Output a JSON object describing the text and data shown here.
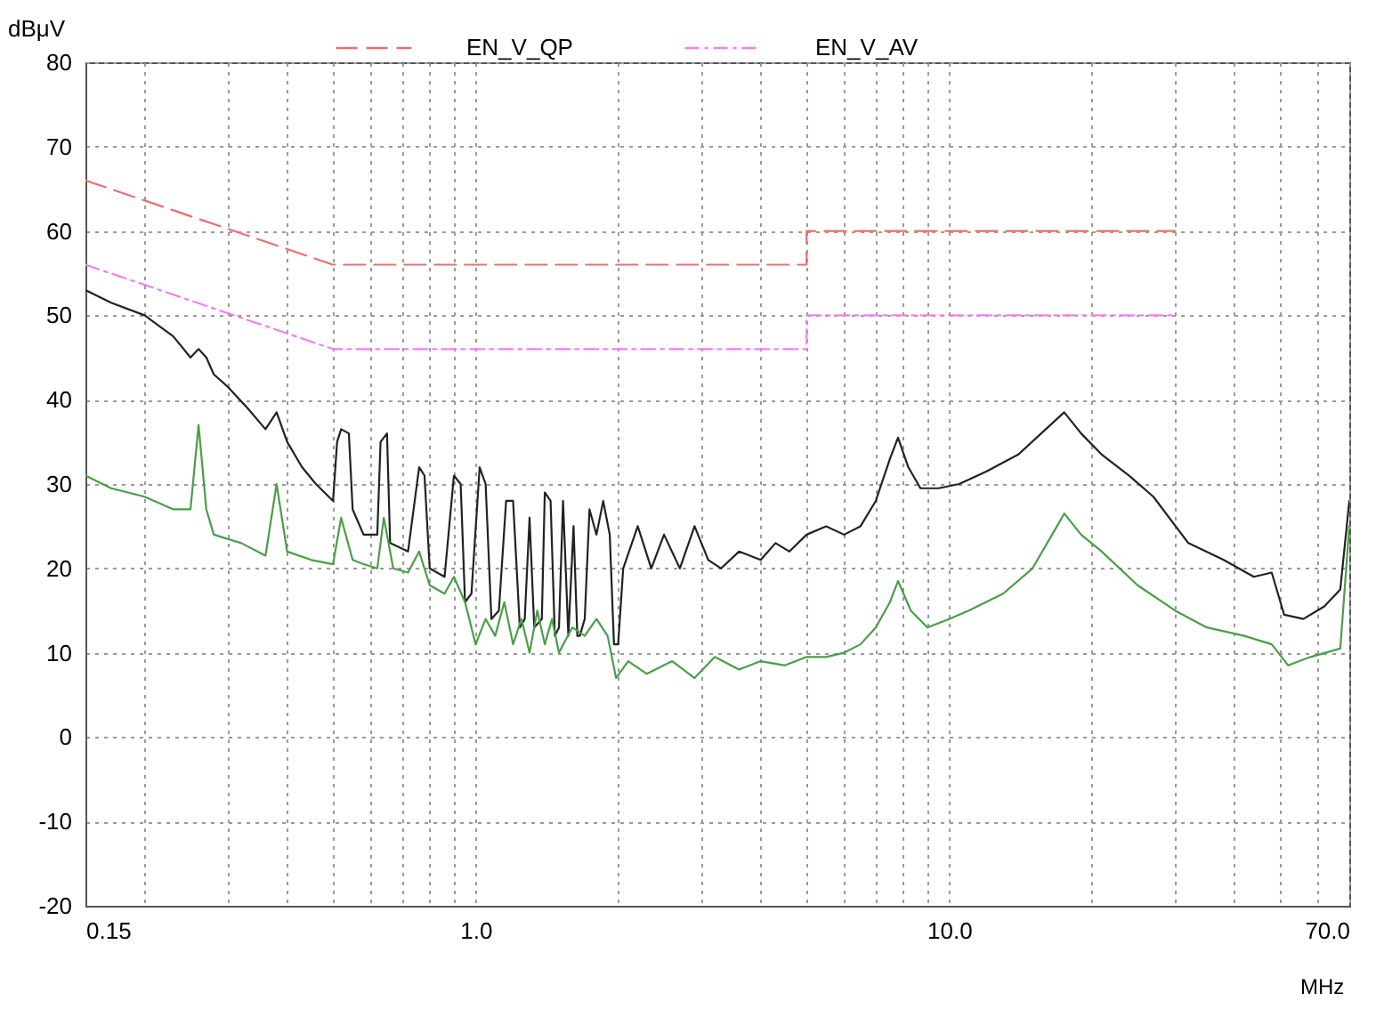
{
  "chart_data": {
    "type": "line",
    "xlabel": "MHz",
    "ylabel": "dBμV",
    "log": "x",
    "grid": true,
    "legend": "top",
    "xlim": [
      0.15,
      70
    ],
    "ylim": [
      -20,
      80
    ],
    "xticks": [
      {
        "value": 0.15,
        "label": "0.15"
      },
      {
        "value": 0.2,
        "label": null
      },
      {
        "value": 0.3,
        "label": null
      },
      {
        "value": 0.4,
        "label": null
      },
      {
        "value": 0.5,
        "label": null
      },
      {
        "value": 0.6,
        "label": null
      },
      {
        "value": 0.7,
        "label": null
      },
      {
        "value": 0.8,
        "label": null
      },
      {
        "value": 0.9,
        "label": null
      },
      {
        "value": 1,
        "label": "1.0"
      },
      {
        "value": 2,
        "label": null
      },
      {
        "value": 3,
        "label": null
      },
      {
        "value": 4,
        "label": null
      },
      {
        "value": 5,
        "label": null
      },
      {
        "value": 6,
        "label": null
      },
      {
        "value": 7,
        "label": null
      },
      {
        "value": 8,
        "label": null
      },
      {
        "value": 9,
        "label": null
      },
      {
        "value": 10,
        "label": "10.0"
      },
      {
        "value": 20,
        "label": null
      },
      {
        "value": 30,
        "label": null
      },
      {
        "value": 40,
        "label": null
      },
      {
        "value": 50,
        "label": null
      },
      {
        "value": 60,
        "label": null
      },
      {
        "value": 70,
        "label": "70.0"
      }
    ],
    "yticks": [
      -20,
      -10,
      0,
      10,
      20,
      30,
      40,
      50,
      60,
      70,
      80
    ],
    "series": [
      {
        "name": "EN_V_QP",
        "color": "#e8706e",
        "line_style": "dashed",
        "x": [
          0.15,
          0.5,
          5,
          5,
          30
        ],
        "values": [
          66,
          56,
          56,
          60,
          60
        ]
      },
      {
        "name": "EN_V_AV",
        "color": "#ee82ee",
        "line_style": "dotted",
        "x": [
          0.15,
          0.5,
          5,
          5,
          30
        ],
        "values": [
          56,
          46,
          46,
          50,
          50
        ]
      },
      {
        "color": "#222222",
        "line_style": "solid",
        "x": [
          0.15,
          0.17,
          0.2,
          0.23,
          0.25,
          0.26,
          0.27,
          0.28,
          0.3,
          0.33,
          0.36,
          0.38,
          0.4,
          0.43,
          0.46,
          0.5,
          0.51,
          0.52,
          0.54,
          0.55,
          0.58,
          0.62,
          0.63,
          0.65,
          0.66,
          0.72,
          0.76,
          0.78,
          0.8,
          0.86,
          0.9,
          0.93,
          0.95,
          0.98,
          1.02,
          1.05,
          1.08,
          1.12,
          1.16,
          1.2,
          1.24,
          1.27,
          1.3,
          1.33,
          1.38,
          1.4,
          1.44,
          1.47,
          1.5,
          1.53,
          1.57,
          1.61,
          1.64,
          1.66,
          1.7,
          1.74,
          1.8,
          1.86,
          1.92,
          1.96,
          2.0,
          2.05,
          2.2,
          2.35,
          2.5,
          2.7,
          2.9,
          3.1,
          3.3,
          3.6,
          4.0,
          4.3,
          4.6,
          5.0,
          5.5,
          6.0,
          6.5,
          7.0,
          7.5,
          7.8,
          8.2,
          8.7,
          9.5,
          10.5,
          12,
          14,
          16,
          17.5,
          19,
          21,
          24,
          27,
          32,
          38,
          44,
          48,
          51,
          56,
          62,
          67,
          70
        ],
        "values": [
          53,
          51.5,
          50,
          47.5,
          45,
          46,
          45,
          43,
          41.5,
          39,
          36.5,
          38.5,
          35,
          32,
          30,
          28,
          35,
          36.5,
          36,
          27,
          24,
          24,
          35,
          36,
          23,
          22,
          32,
          31,
          20,
          19,
          31,
          30,
          16,
          17,
          32,
          30,
          14,
          15,
          28,
          28,
          13,
          14,
          26,
          13,
          14,
          29,
          28,
          12,
          13,
          28,
          12,
          25,
          12,
          12,
          14,
          27,
          24,
          28,
          24,
          11,
          11,
          20,
          25,
          20,
          24,
          20,
          25,
          21,
          20,
          22,
          21,
          23,
          22,
          24,
          25,
          24,
          25,
          28,
          33,
          35.5,
          32,
          29.5,
          29.5,
          30,
          31.5,
          33.5,
          36.5,
          38.5,
          36,
          33.5,
          31,
          28.5,
          23,
          21,
          19,
          19.5,
          14.5,
          14,
          15.5,
          17.5,
          28
        ]
      },
      {
        "color": "#4a9e48",
        "line_style": "solid",
        "x": [
          0.15,
          0.17,
          0.2,
          0.23,
          0.25,
          0.26,
          0.27,
          0.28,
          0.32,
          0.36,
          0.38,
          0.4,
          0.45,
          0.5,
          0.52,
          0.55,
          0.58,
          0.62,
          0.64,
          0.67,
          0.72,
          0.76,
          0.8,
          0.86,
          0.9,
          0.95,
          1.0,
          1.05,
          1.1,
          1.15,
          1.2,
          1.25,
          1.3,
          1.35,
          1.4,
          1.45,
          1.5,
          1.6,
          1.7,
          1.8,
          1.9,
          1.98,
          2.1,
          2.3,
          2.6,
          2.9,
          3.2,
          3.6,
          4.0,
          4.5,
          5.0,
          5.5,
          6.0,
          6.5,
          7.0,
          7.5,
          7.8,
          8.3,
          9.0,
          10,
          11,
          13,
          15,
          16.5,
          17.5,
          19,
          21,
          25,
          30,
          35,
          42,
          48,
          52,
          58,
          67,
          70
        ],
        "values": [
          31,
          29.5,
          28.5,
          27,
          27,
          37,
          27,
          24,
          23,
          21.5,
          30,
          22,
          21,
          20.5,
          26,
          21,
          20.5,
          20,
          26,
          20,
          19.5,
          22,
          18,
          17,
          19,
          16,
          11,
          14,
          12,
          16,
          11,
          14,
          10,
          15,
          11,
          14,
          10,
          13,
          12,
          14,
          12,
          7,
          9,
          7.5,
          9,
          7,
          9.5,
          8,
          9,
          8.5,
          9.5,
          9.5,
          10,
          11,
          13,
          16,
          18.5,
          15,
          13,
          14,
          15,
          17,
          20,
          24,
          26.5,
          24,
          22,
          18,
          15,
          13,
          12,
          11,
          8.5,
          9.5,
          10.5,
          25
        ]
      }
    ]
  }
}
